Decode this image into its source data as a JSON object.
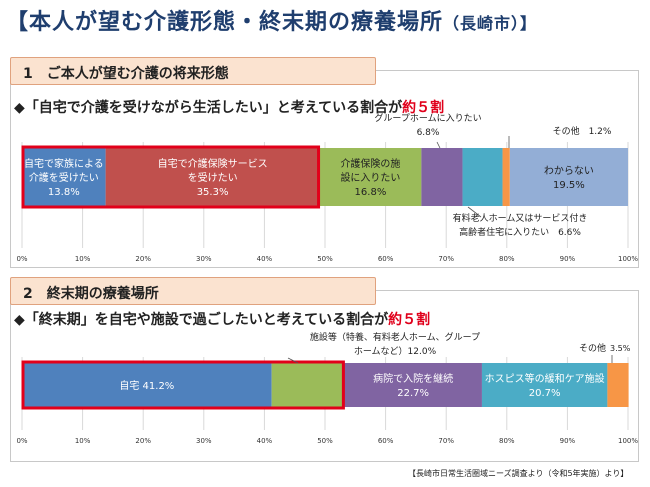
{
  "header": {
    "title": "【本人が望む介護形態・終末期の療養場所",
    "title_sub": "（長崎市）】"
  },
  "section1": {
    "heading": "1　ご本人が望む介護の将来形態",
    "lead_text": "◆「自宅で介護を受けながら生活したい」と考えている割合が",
    "lead_accent": "約５割"
  },
  "section2": {
    "heading": "2　終末期の療養場所",
    "lead_text": "◆「終末期」を自宅や施設で過ごしたいと考えている割合が",
    "lead_accent": "約５割"
  },
  "source_note": "【長崎市日常生活圏域ニーズ調査より（令和5年実施）より】",
  "colors": {
    "blue": "#4f81bd",
    "red": "#c0504d",
    "green": "#9bbb59",
    "purple": "#8064a2",
    "teal": "#4bacc6",
    "orange": "#f79646",
    "lightblue": "#93aed6",
    "highlight": "#e2001a"
  },
  "chart_data": [
    {
      "type": "bar",
      "orientation": "horizontal-stacked-100",
      "xlim": [
        0,
        100
      ],
      "ticks": [
        "0%",
        "10%",
        "20%",
        "30%",
        "40%",
        "50%",
        "60%",
        "70%",
        "80%",
        "90%",
        "100%"
      ],
      "segments": [
        {
          "value": 13.8,
          "color": "#4f81bd",
          "label_lines": [
            "自宅で家族による",
            "介護を受けたい",
            "13.8%"
          ],
          "label_pos": "inside",
          "text_color": "#ffffff"
        },
        {
          "value": 35.3,
          "color": "#c0504d",
          "label_lines": [
            "自宅で介護保険サービス",
            "を受けたい",
            "35.3%"
          ],
          "label_pos": "inside",
          "text_color": "#ffffff"
        },
        {
          "value": 16.8,
          "color": "#9bbb59",
          "label_lines": [
            "介護保険の施",
            "設に入りたい",
            "16.8%"
          ],
          "label_pos": "inside",
          "text_color": "#222222"
        },
        {
          "value": 6.8,
          "color": "#8064a2",
          "label_lines": [
            "グループホームに入りたい",
            "6.8%"
          ],
          "label_pos": "above",
          "text_color": "#222222"
        },
        {
          "value": 6.6,
          "color": "#4bacc6",
          "label_lines": [
            "有料老人ホーム又はサービス付き",
            "高齢者住宅に入りたい　6.6%"
          ],
          "label_pos": "below",
          "text_color": "#222222"
        },
        {
          "value": 1.2,
          "color": "#f79646",
          "label_lines": [
            "その他　1.2%"
          ],
          "label_pos": "above-right",
          "text_color": "#222222"
        },
        {
          "value": 19.5,
          "color": "#93aed6",
          "label_lines": [
            "わからない",
            "19.5%"
          ],
          "label_pos": "inside",
          "text_color": "#222222"
        }
      ],
      "highlight_segments": [
        0,
        1
      ]
    },
    {
      "type": "bar",
      "orientation": "horizontal-stacked-100",
      "xlim": [
        0,
        100
      ],
      "ticks": [
        "0%",
        "10%",
        "20%",
        "30%",
        "40%",
        "50%",
        "60%",
        "70%",
        "80%",
        "90%",
        "100%"
      ],
      "segments": [
        {
          "value": 41.2,
          "color": "#4f81bd",
          "label_lines": [
            "自宅 41.2%"
          ],
          "label_pos": "inside",
          "text_color": "#ffffff"
        },
        {
          "value": 12.0,
          "color": "#9bbb59",
          "label_lines": [
            "施設等（特養、有料老人ホーム、グループ",
            "ホームなど）12.0%"
          ],
          "label_pos": "above",
          "text_color": "#222222"
        },
        {
          "value": 22.7,
          "color": "#8064a2",
          "label_lines": [
            "病院で入院を継続",
            "22.7%"
          ],
          "label_pos": "inside",
          "text_color": "#ffffff"
        },
        {
          "value": 20.7,
          "color": "#4bacc6",
          "label_lines": [
            "ホスピス等の緩和ケア施設",
            "20.7%"
          ],
          "label_pos": "inside",
          "text_color": "#ffffff"
        },
        {
          "value": 3.5,
          "color": "#f79646",
          "label_lines": [
            "その他",
            "3.5%"
          ],
          "label_pos": "above-right",
          "text_color": "#222222"
        }
      ],
      "highlight_segments": [
        0,
        1
      ]
    }
  ]
}
